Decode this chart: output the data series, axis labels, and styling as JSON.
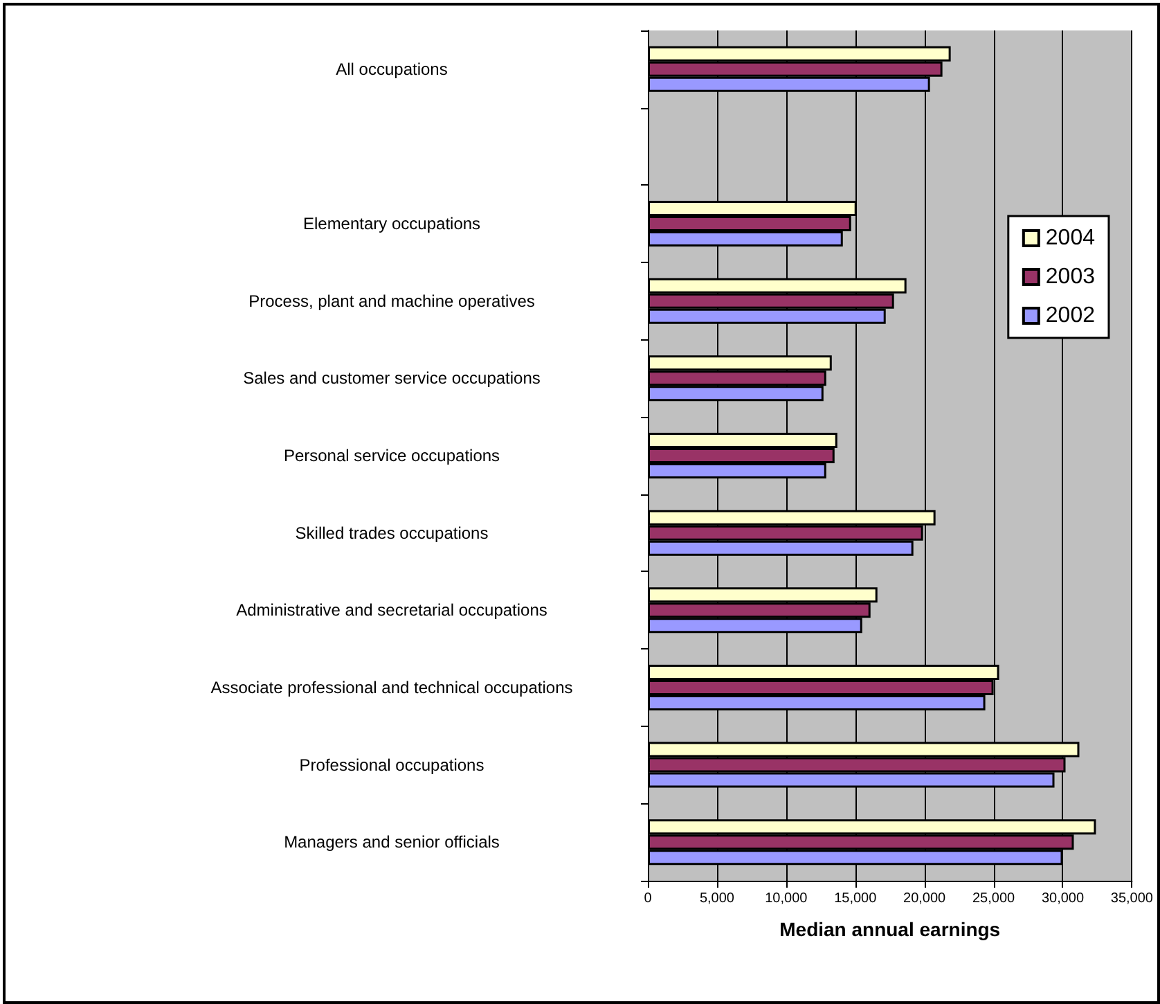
{
  "chart_data": {
    "type": "bar",
    "orientation": "horizontal",
    "xlabel": "Median annual earnings",
    "categories": [
      "All occupations",
      null,
      "Elementary occupations",
      "Process, plant and machine operatives",
      "Sales and customer service occupations",
      "Personal service occupations",
      "Skilled trades occupations",
      "Administrative and secretarial occupations",
      "Associate professional and technical occupations",
      "Professional occupations",
      "Managers and senior officials"
    ],
    "series": [
      {
        "name": "2004",
        "color": "#ffffcc",
        "values": [
          21900,
          null,
          15100,
          18700,
          13300,
          13700,
          20800,
          16600,
          25400,
          31200,
          32400
        ]
      },
      {
        "name": "2003",
        "color": "#993366",
        "values": [
          21300,
          null,
          14700,
          17800,
          12900,
          13500,
          19900,
          16100,
          25000,
          30200,
          30800
        ]
      },
      {
        "name": "2002",
        "color": "#9999ff",
        "values": [
          20400,
          null,
          14100,
          17200,
          12700,
          12900,
          19200,
          15500,
          24400,
          29400,
          30000
        ]
      }
    ],
    "xlim": [
      0,
      35000
    ],
    "xticks": [
      0,
      {
        "value": 5000,
        "label": "5,000"
      },
      {
        "value": 10000,
        "label": "10,000"
      },
      {
        "value": 15000,
        "label": "15,000"
      },
      {
        "value": 20000,
        "label": "20,000"
      },
      {
        "value": 25000,
        "label": "25,000"
      },
      {
        "value": 30000,
        "label": "30,000"
      },
      {
        "value": 35000,
        "label": "35,000"
      }
    ],
    "grid": "x",
    "legend": "right"
  }
}
